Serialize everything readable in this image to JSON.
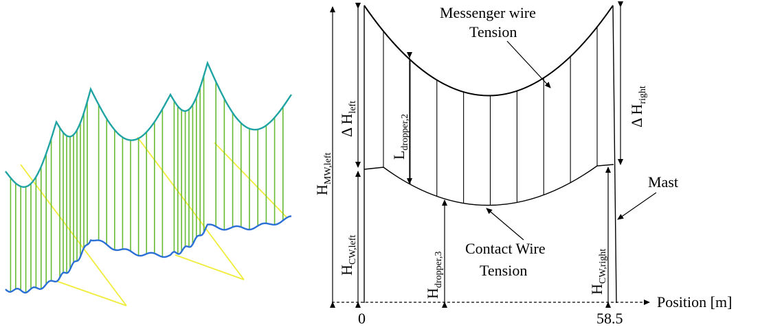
{
  "colors": {
    "messenger_wire_3d": "#1fa3a3",
    "contact_wire_3d": "#2a6fd6",
    "dropper_3d": "#66bb33",
    "track_3d": "#f0ec3a",
    "line": "#000000"
  },
  "left_figure": {
    "masts": 4,
    "droppers_per_span": 9
  },
  "right_figure": {
    "labels": {
      "messenger_wire": "Messenger wire",
      "messenger_tension": "Tension",
      "contact_wire": "Contact Wire",
      "contact_tension": "Tension",
      "mast": "Mast",
      "position_axis": "Position [m]",
      "x_start": "0",
      "x_end": "58.5"
    },
    "dimensions": {
      "delta_left": {
        "main": "Δ H",
        "sub": "left"
      },
      "delta_right": {
        "main": "Δ H",
        "sub": "right"
      },
      "h_mw_left": {
        "main": "H",
        "sub": "MW,left"
      },
      "h_cw_left": {
        "main": "H",
        "sub": "CW,left"
      },
      "h_cw_right": {
        "main": "H",
        "sub": "CW,right"
      },
      "l_dropper_2": {
        "main": "L",
        "sub": "dropper,2"
      },
      "h_dropper_3": {
        "main": "H",
        "sub": "dropper,3"
      }
    },
    "droppers_count": 9
  }
}
